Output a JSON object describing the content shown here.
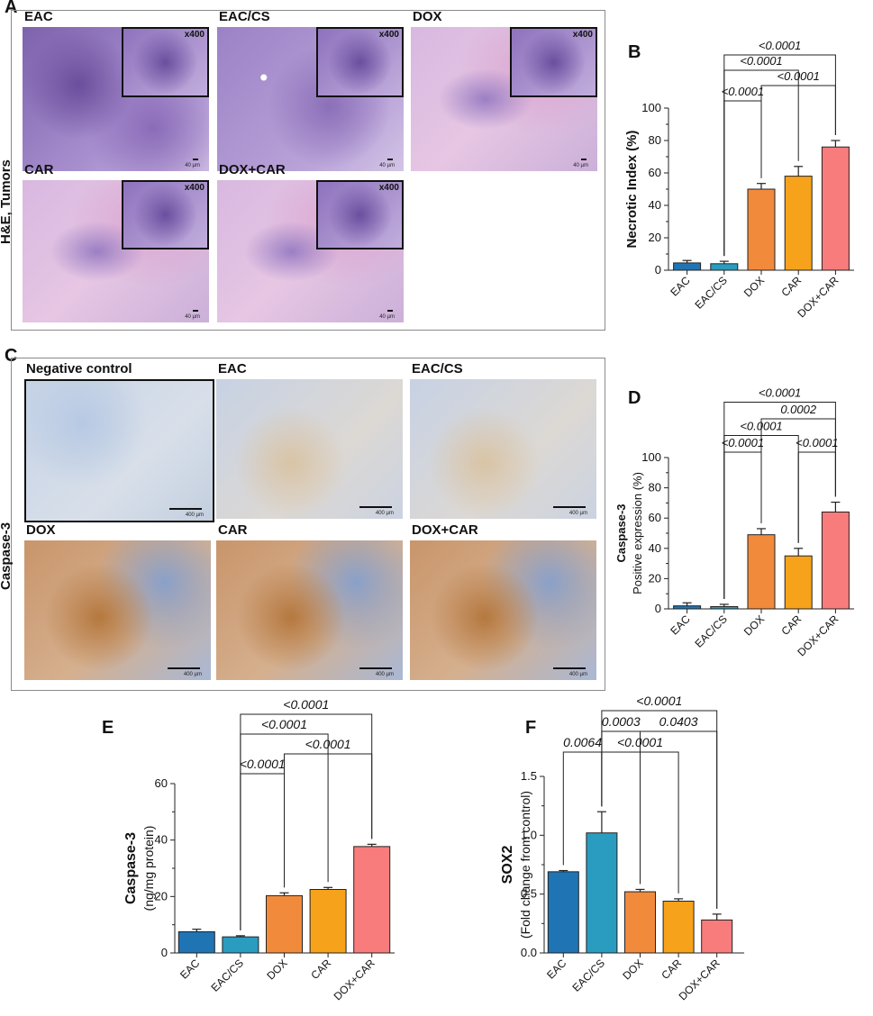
{
  "panels": {
    "A": {
      "letter": "A",
      "side_label": "H&E, Tumors",
      "images": [
        {
          "label": "EAC",
          "inset": "x400",
          "scale": "40 µm",
          "tone": "he_dense"
        },
        {
          "label": "EAC/CS",
          "inset": "x400",
          "scale": "40 µm",
          "tone": "he_vac"
        },
        {
          "label": "DOX",
          "inset": "x400",
          "scale": "40 µm",
          "tone": "he_pink"
        },
        {
          "label": "CAR",
          "inset": "x400",
          "scale": "40 µm",
          "tone": "he_pink"
        },
        {
          "label": "DOX+CAR",
          "inset": "x400",
          "scale": "40 µm",
          "tone": "he_pink"
        }
      ]
    },
    "B": {
      "letter": "B"
    },
    "C": {
      "letter": "C",
      "side_label": "Caspase-3",
      "images": [
        {
          "label": "Negative control",
          "scale": "400 µm",
          "tone": "ihc_neg"
        },
        {
          "label": "EAC",
          "scale": "400 µm",
          "tone": "ihc_low"
        },
        {
          "label": "EAC/CS",
          "scale": "400 µm",
          "tone": "ihc_low"
        },
        {
          "label": "DOX",
          "scale": "400 µm",
          "tone": "ihc_high"
        },
        {
          "label": "CAR",
          "scale": "400 µm",
          "tone": "ihc_high"
        },
        {
          "label": "DOX+CAR",
          "scale": "400 µm",
          "tone": "ihc_high"
        }
      ]
    },
    "D": {
      "letter": "D"
    },
    "E": {
      "letter": "E"
    },
    "F": {
      "letter": "F"
    }
  },
  "chart_data": [
    {
      "panel": "B",
      "type": "bar",
      "categories": [
        "EAC",
        "EAC/CS",
        "DOX",
        "CAR",
        "DOX+CAR"
      ],
      "values": [
        4.5,
        4.0,
        50,
        58,
        76
      ],
      "errors": [
        1.5,
        1.5,
        3.5,
        6,
        4
      ],
      "colors": [
        "#1f74b4",
        "#2a9cc0",
        "#f28a3c",
        "#f7a21b",
        "#f97c7c"
      ],
      "ylabel_lines": [
        "Necrotic Index (%)"
      ],
      "ylim": [
        0,
        100
      ],
      "yticks": [
        0,
        20,
        40,
        60,
        80,
        100
      ],
      "comparisons": [
        {
          "from": 1,
          "to": 4,
          "label": "<0.0001",
          "level": 4
        },
        {
          "from": 1,
          "to": 3,
          "label": "<0.0001",
          "level": 3
        },
        {
          "from": 1,
          "to": 2,
          "label": "<0.0001",
          "level": 1
        },
        {
          "from": 2,
          "to": 4,
          "label": "<0.0001",
          "level": 2
        }
      ]
    },
    {
      "panel": "D",
      "type": "bar",
      "categories": [
        "EAC",
        "EAC/CS",
        "DOX",
        "CAR",
        "DOX+CAR"
      ],
      "values": [
        2,
        1.5,
        49,
        35,
        64
      ],
      "errors": [
        2,
        1.5,
        4,
        5,
        6.5
      ],
      "colors": [
        "#1f74b4",
        "#2a9cc0",
        "#f28a3c",
        "#f7a21b",
        "#f97c7c"
      ],
      "ylabel_lines": [
        "Caspase-3",
        "Positive expression (%)"
      ],
      "ylim": [
        0,
        100
      ],
      "yticks": [
        0,
        20,
        40,
        60,
        80,
        100
      ],
      "comparisons": [
        {
          "from": 1,
          "to": 4,
          "label": "<0.0001",
          "level": 4
        },
        {
          "from": 2,
          "to": 4,
          "label": "0.0002",
          "level": 3
        },
        {
          "from": 1,
          "to": 3,
          "label": "<0.0001",
          "level": 2
        },
        {
          "from": 1,
          "to": 2,
          "label": "<0.0001",
          "level": 1
        },
        {
          "from": 3,
          "to": 4,
          "label": "<0.0001",
          "level": 1
        }
      ]
    },
    {
      "panel": "E",
      "type": "bar",
      "categories": [
        "EAC",
        "EAC/CS",
        "DOX",
        "CAR",
        "DOX+CAR"
      ],
      "values": [
        7.5,
        5.7,
        20.3,
        22.5,
        37.7
      ],
      "errors": [
        0.9,
        0.4,
        1.0,
        0.7,
        0.8
      ],
      "colors": [
        "#1f74b4",
        "#2a9cc0",
        "#f28a3c",
        "#f7a21b",
        "#f97c7c"
      ],
      "ylabel_lines": [
        "Caspase-3",
        "(ng/mg protein)"
      ],
      "ylim": [
        0,
        60
      ],
      "yticks": [
        0,
        20,
        40,
        60
      ],
      "comparisons": [
        {
          "from": 1,
          "to": 4,
          "label": "<0.0001",
          "level": 4
        },
        {
          "from": 1,
          "to": 3,
          "label": "<0.0001",
          "level": 3
        },
        {
          "from": 1,
          "to": 2,
          "label": "<0.0001",
          "level": 1
        },
        {
          "from": 2,
          "to": 4,
          "label": "<0.0001",
          "level": 2
        }
      ]
    },
    {
      "panel": "F",
      "type": "bar",
      "categories": [
        "EAC",
        "EAC/CS",
        "DOX",
        "CAR",
        "DOX+CAR"
      ],
      "values": [
        0.69,
        1.02,
        0.52,
        0.44,
        0.28
      ],
      "errors": [
        0.01,
        0.18,
        0.02,
        0.02,
        0.05
      ],
      "colors": [
        "#1f74b4",
        "#2a9cc0",
        "#f28a3c",
        "#f7a21b",
        "#f97c7c"
      ],
      "ylabel_lines": [
        "SOX2",
        "(Fold change from control)"
      ],
      "ylim": [
        0,
        1.5
      ],
      "yticks": [
        0.0,
        0.5,
        1.0,
        1.5
      ],
      "tick_decimals": 1,
      "comparisons": [
        {
          "from": 1,
          "to": 4,
          "label": "<0.0001",
          "level": 4
        },
        {
          "from": 1,
          "to": 2,
          "label": "0.0003",
          "level": 3
        },
        {
          "from": 2,
          "to": 4,
          "label": "0.0403",
          "level": 3
        },
        {
          "from": 0,
          "to": 1,
          "label": "0.0064",
          "level": 2
        },
        {
          "from": 1,
          "to": 3,
          "label": "<0.0001",
          "level": 2
        }
      ]
    }
  ]
}
